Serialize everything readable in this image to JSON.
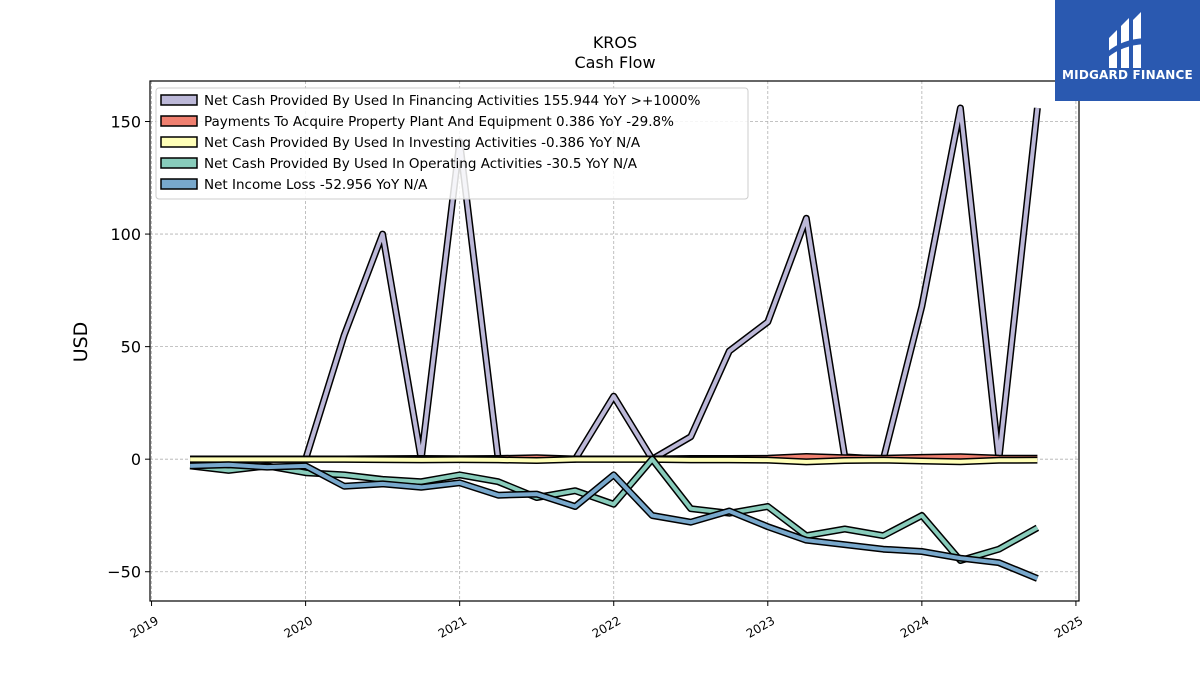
{
  "chart_data": {
    "type": "line",
    "title": "KROS",
    "subtitle": "Cash Flow",
    "ylabel": "USD",
    "xlabel": "",
    "ylim": [
      -63,
      168
    ],
    "xlim": [
      2018.99,
      2025.02
    ],
    "yticks": [
      -50,
      0,
      50,
      100,
      150
    ],
    "xticks": [
      2019,
      2020,
      2021,
      2022,
      2023,
      2024,
      2025
    ],
    "grid": true,
    "legend_position": "upper-left",
    "x": [
      2019.25,
      2019.5,
      2019.75,
      2020.0,
      2020.25,
      2020.5,
      2020.75,
      2021.0,
      2021.25,
      2021.5,
      2021.75,
      2022.0,
      2022.25,
      2022.5,
      2022.75,
      2023.0,
      2023.25,
      2023.5,
      2023.75,
      2024.0,
      2024.25,
      2024.5,
      2024.75
    ],
    "series": [
      {
        "name": "Net Cash Provided By Used In Financing Activities",
        "legend_label": "Net Cash Provided By Used In Financing Activities  155.944 YoY >+1000%",
        "color": "#bcb8d8",
        "values": [
          0,
          0,
          0,
          0,
          55,
          100,
          0,
          141,
          0,
          0,
          0,
          28,
          0,
          10,
          48,
          61,
          107,
          1,
          0,
          68,
          156,
          0,
          156
        ]
      },
      {
        "name": "Payments To Acquire Property Plant And Equipment",
        "legend_label": "Payments To Acquire Property Plant And Equipment  0.386 YoY -29.8%",
        "color": "#f08070",
        "values": [
          0.1,
          0.1,
          0.1,
          0.1,
          0.1,
          0.2,
          0.3,
          0.2,
          0.3,
          0.6,
          0.1,
          0.1,
          0.1,
          0.3,
          0.3,
          0.4,
          1.2,
          0.6,
          0.4,
          0.8,
          1.1,
          0.5,
          0.4
        ]
      },
      {
        "name": "Net Cash Provided By Used In Investing Activities",
        "legend_label": "Net Cash Provided By Used In Investing Activities  -0.386 YoY N/A",
        "color": "#ffffb8",
        "values": [
          -0.1,
          -0.1,
          -0.1,
          -0.1,
          -0.1,
          -0.2,
          -0.3,
          -0.2,
          -0.3,
          -0.6,
          -0.1,
          -0.1,
          -0.1,
          -0.3,
          -0.3,
          -0.4,
          -1.2,
          -0.6,
          -0.4,
          -0.8,
          -1.1,
          -0.5,
          -0.4
        ]
      },
      {
        "name": "Net Cash Provided By Used In Operating Activities",
        "legend_label": "Net Cash Provided By Used In Operating Activities  -30.5 YoY N/A",
        "color": "#88ccbb",
        "values": [
          -3,
          -5,
          -3,
          -6,
          -7,
          -9,
          -10,
          -7,
          -10,
          -17,
          -14,
          -20,
          0,
          -22,
          -24,
          -21,
          -34,
          -31,
          -34,
          -25,
          -45,
          -40,
          -30.5
        ]
      },
      {
        "name": "Net Income Loss",
        "legend_label": "Net Income Loss  -52.956 YoY N/A",
        "color": "#78a8cc",
        "values": [
          -3,
          -2.5,
          -3.5,
          -3,
          -12,
          -11,
          -12.5,
          -10.5,
          -16,
          -15.5,
          -21,
          -7,
          -25,
          -28,
          -23,
          -30,
          -36,
          -38,
          -40,
          -41,
          -44,
          -46,
          -53
        ]
      }
    ]
  },
  "logo": {
    "text": "MIDGARD FINANCE",
    "background": "#2a59b0"
  }
}
